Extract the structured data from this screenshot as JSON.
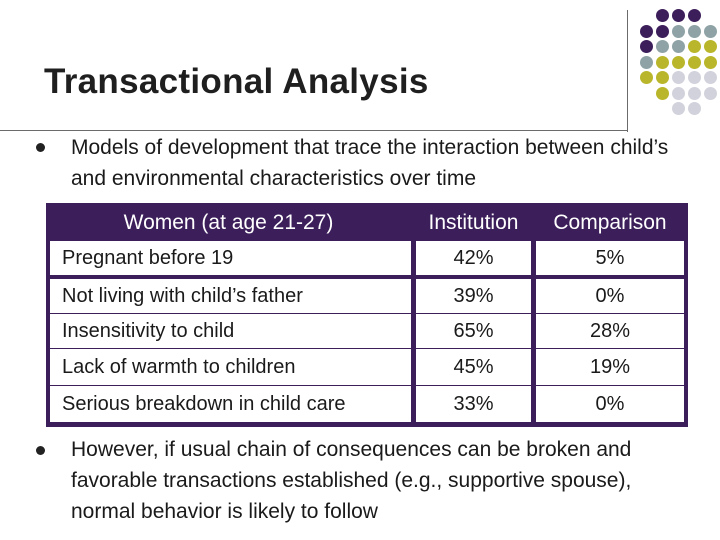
{
  "slide": {
    "title": "Transactional Analysis",
    "bullets": [
      {
        "text": "Models of development that trace the interaction between child’s and environmental characteristics over time"
      },
      {
        "text": "However, if usual chain of consequences can be broken and favorable transactions established (e.g., supportive spouse), normal behavior is likely to follow"
      }
    ],
    "table": {
      "headers": [
        "Women (at age 21-27)",
        "Institution",
        "Comparison"
      ],
      "rows": [
        [
          "Pregnant before 19",
          "42%",
          "5%"
        ],
        [
          "Not living with child’s father",
          "39%",
          "0%"
        ],
        [
          "Insensitivity to child",
          "65%",
          "28%"
        ],
        [
          "Lack of warmth to children",
          "45%",
          "19%"
        ],
        [
          "Serious breakdown in child care",
          "33%",
          "0%"
        ]
      ]
    }
  },
  "colors": {
    "purple": "#3c1e5a",
    "gray_teal": "#8fa3a6",
    "olive": "#b9b62b",
    "light_gray": "#d2d2dc"
  }
}
